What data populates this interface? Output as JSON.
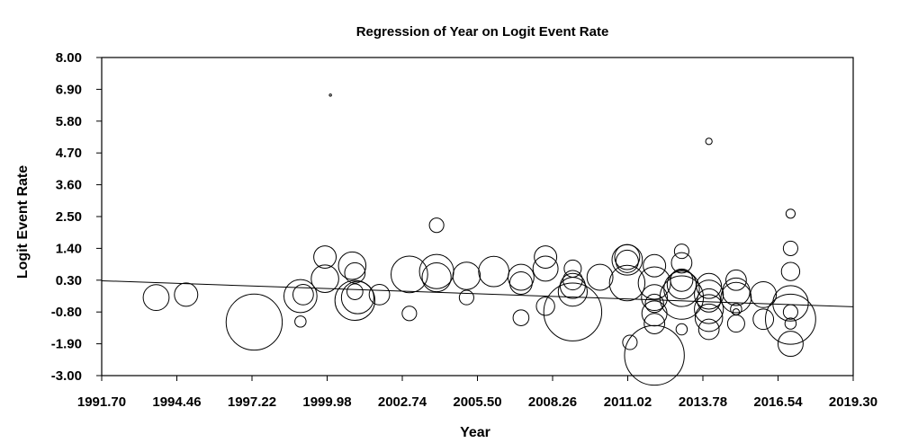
{
  "chart_data": {
    "type": "scatter",
    "title": "Regression of Year on Logit Event Rate",
    "xlabel": "Year",
    "ylabel": "Logit Event Rate",
    "xlim": [
      1991.7,
      2019.3
    ],
    "ylim": [
      -3.0,
      8.0
    ],
    "x_ticks": [
      "1991.70",
      "1994.46",
      "1997.22",
      "1999.98",
      "2002.74",
      "2005.50",
      "2008.26",
      "2011.02",
      "2013.78",
      "2016.54",
      "2019.30"
    ],
    "y_ticks": [
      "8.00",
      "6.90",
      "5.80",
      "4.70",
      "3.60",
      "2.50",
      "1.40",
      "0.30",
      "-0.80",
      "-1.90",
      "-3.00"
    ],
    "regression_line": {
      "x": [
        1991.7,
        2019.3
      ],
      "y": [
        0.28,
        -0.62
      ]
    },
    "points": [
      {
        "x": 1993.7,
        "y": -0.3,
        "weight": 0.16
      },
      {
        "x": 1994.8,
        "y": -0.2,
        "weight": 0.13
      },
      {
        "x": 1997.3,
        "y": -1.15,
        "weight": 0.75
      },
      {
        "x": 1999.0,
        "y": -1.13,
        "weight": 0.03
      },
      {
        "x": 1999.0,
        "y": -0.25,
        "weight": 0.26
      },
      {
        "x": 1999.1,
        "y": -0.2,
        "weight": 0.1
      },
      {
        "x": 1999.9,
        "y": 1.1,
        "weight": 0.12
      },
      {
        "x": 1999.9,
        "y": 0.35,
        "weight": 0.18
      },
      {
        "x": 2000.1,
        "y": 6.7,
        "weight": 0.001
      },
      {
        "x": 2000.9,
        "y": 0.8,
        "weight": 0.18
      },
      {
        "x": 2001.0,
        "y": 0.55,
        "weight": 0.1
      },
      {
        "x": 2001.0,
        "y": -0.1,
        "weight": 0.06
      },
      {
        "x": 2001.0,
        "y": -0.4,
        "weight": 0.38
      },
      {
        "x": 2001.1,
        "y": -0.3,
        "weight": 0.25
      },
      {
        "x": 2001.9,
        "y": -0.2,
        "weight": 0.1
      },
      {
        "x": 2003.0,
        "y": 0.5,
        "weight": 0.32
      },
      {
        "x": 2003.0,
        "y": -0.85,
        "weight": 0.05
      },
      {
        "x": 2004.0,
        "y": 2.2,
        "weight": 0.05
      },
      {
        "x": 2004.0,
        "y": 0.6,
        "weight": 0.28
      },
      {
        "x": 2004.0,
        "y": 0.4,
        "weight": 0.2
      },
      {
        "x": 2005.1,
        "y": 0.45,
        "weight": 0.18
      },
      {
        "x": 2005.1,
        "y": -0.3,
        "weight": 0.05
      },
      {
        "x": 2006.1,
        "y": 0.6,
        "weight": 0.22
      },
      {
        "x": 2007.1,
        "y": 0.4,
        "weight": 0.16
      },
      {
        "x": 2007.1,
        "y": 0.2,
        "weight": 0.12
      },
      {
        "x": 2007.1,
        "y": -1.0,
        "weight": 0.06
      },
      {
        "x": 2008.0,
        "y": 1.1,
        "weight": 0.12
      },
      {
        "x": 2008.0,
        "y": 0.7,
        "weight": 0.15
      },
      {
        "x": 2008.0,
        "y": -0.6,
        "weight": 0.08
      },
      {
        "x": 2009.0,
        "y": 0.7,
        "weight": 0.07
      },
      {
        "x": 2009.0,
        "y": 0.3,
        "weight": 0.09
      },
      {
        "x": 2009.0,
        "y": 0.1,
        "weight": 0.15
      },
      {
        "x": 2009.0,
        "y": -0.1,
        "weight": 0.2
      },
      {
        "x": 2009.0,
        "y": -0.8,
        "weight": 0.8
      },
      {
        "x": 2010.0,
        "y": 0.4,
        "weight": 0.16
      },
      {
        "x": 2011.0,
        "y": 1.1,
        "weight": 0.15
      },
      {
        "x": 2011.0,
        "y": 1.0,
        "weight": 0.22
      },
      {
        "x": 2011.0,
        "y": 0.95,
        "weight": 0.12
      },
      {
        "x": 2011.0,
        "y": 0.2,
        "weight": 0.3
      },
      {
        "x": 2011.1,
        "y": -1.85,
        "weight": 0.05
      },
      {
        "x": 2012.0,
        "y": 0.8,
        "weight": 0.12
      },
      {
        "x": 2012.0,
        "y": 0.2,
        "weight": 0.25
      },
      {
        "x": 2012.0,
        "y": -0.3,
        "weight": 0.16
      },
      {
        "x": 2012.0,
        "y": -0.5,
        "weight": 0.08
      },
      {
        "x": 2012.0,
        "y": -0.85,
        "weight": 0.15
      },
      {
        "x": 2012.0,
        "y": -1.2,
        "weight": 0.1
      },
      {
        "x": 2012.0,
        "y": -2.3,
        "weight": 0.85
      },
      {
        "x": 2013.0,
        "y": 1.3,
        "weight": 0.05
      },
      {
        "x": 2013.0,
        "y": 0.9,
        "weight": 0.1
      },
      {
        "x": 2013.0,
        "y": 0.3,
        "weight": 0.12
      },
      {
        "x": 2013.0,
        "y": 0.15,
        "weight": 0.2
      },
      {
        "x": 2013.0,
        "y": 0.0,
        "weight": 0.3
      },
      {
        "x": 2013.0,
        "y": -0.3,
        "weight": 0.45
      },
      {
        "x": 2013.0,
        "y": -1.4,
        "weight": 0.03
      },
      {
        "x": 2014.0,
        "y": 5.1,
        "weight": 0.01
      },
      {
        "x": 2014.0,
        "y": 0.1,
        "weight": 0.15
      },
      {
        "x": 2014.0,
        "y": -0.2,
        "weight": 0.2
      },
      {
        "x": 2014.0,
        "y": -0.4,
        "weight": 0.13
      },
      {
        "x": 2014.0,
        "y": -0.7,
        "weight": 0.2
      },
      {
        "x": 2014.0,
        "y": -1.0,
        "weight": 0.18
      },
      {
        "x": 2014.0,
        "y": -1.4,
        "weight": 0.1
      },
      {
        "x": 2015.0,
        "y": 0.3,
        "weight": 0.1
      },
      {
        "x": 2015.0,
        "y": -0.1,
        "weight": 0.18
      },
      {
        "x": 2015.0,
        "y": -0.3,
        "weight": 0.22
      },
      {
        "x": 2015.0,
        "y": -0.7,
        "weight": 0.03
      },
      {
        "x": 2015.0,
        "y": -0.8,
        "weight": 0.01
      },
      {
        "x": 2015.0,
        "y": -1.2,
        "weight": 0.07
      },
      {
        "x": 2016.0,
        "y": -0.2,
        "weight": 0.16
      },
      {
        "x": 2016.0,
        "y": -1.05,
        "weight": 0.1
      },
      {
        "x": 2017.0,
        "y": 2.6,
        "weight": 0.02
      },
      {
        "x": 2017.0,
        "y": 1.4,
        "weight": 0.05
      },
      {
        "x": 2017.0,
        "y": 0.6,
        "weight": 0.08
      },
      {
        "x": 2017.0,
        "y": -0.5,
        "weight": 0.3
      },
      {
        "x": 2017.0,
        "y": -0.8,
        "weight": 0.05
      },
      {
        "x": 2017.0,
        "y": -1.05,
        "weight": 0.6
      },
      {
        "x": 2017.0,
        "y": -1.2,
        "weight": 0.03
      },
      {
        "x": 2017.0,
        "y": -1.9,
        "weight": 0.15
      }
    ]
  }
}
